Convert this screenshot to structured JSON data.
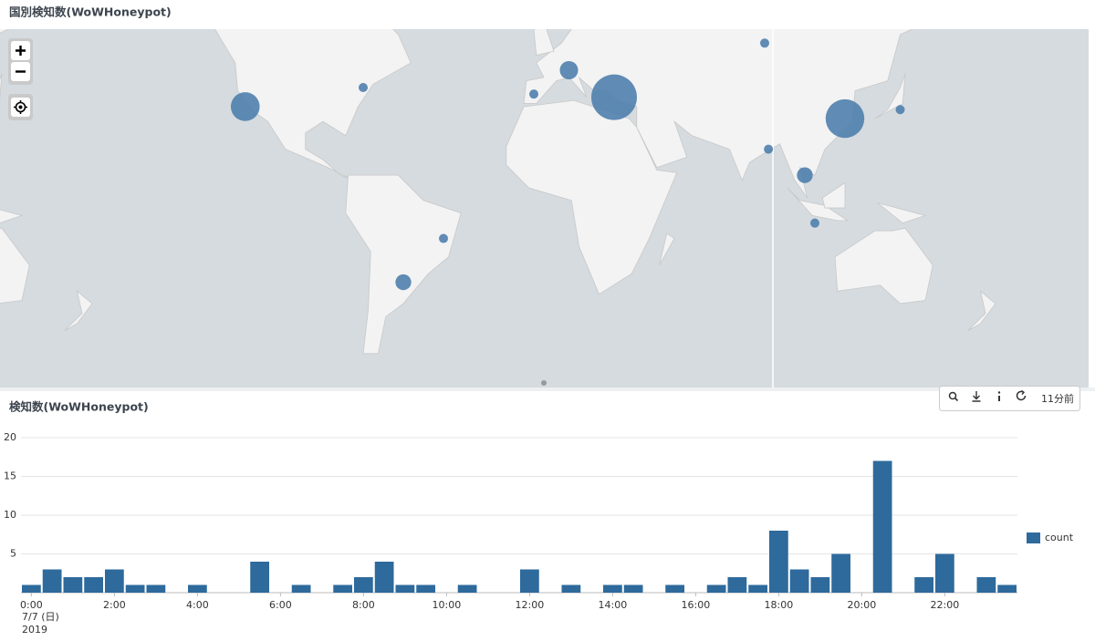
{
  "map_panel": {
    "title": "国別検知数(WoWHoneypot)",
    "color": "#4f7fad",
    "bubbles": {
      "lon": [
        -121,
        -74,
        -6,
        8,
        86,
        26,
        118,
        140,
        87.5,
        102,
        106,
        -42,
        -58
      ],
      "lat": [
        35,
        41,
        39,
        46,
        53,
        38,
        31,
        34,
        20,
        10,
        -9,
        -15,
        -31
      ],
      "count": [
        10,
        1,
        1,
        4,
        1,
        25,
        18,
        1,
        1,
        3,
        1,
        1,
        3
      ]
    }
  },
  "toolbar": {
    "time_label": "11分前"
  },
  "chart_data": {
    "type": "bar",
    "title": "検知数(WoWHoneypot)",
    "categories": [
      "0:00",
      null,
      null,
      null,
      "2:00",
      null,
      null,
      null,
      "4:00",
      null,
      null,
      null,
      "6:00",
      null,
      null,
      null,
      "8:00",
      null,
      null,
      null,
      "10:00",
      null,
      null,
      null,
      "12:00",
      null,
      null,
      null,
      "14:00",
      null,
      null,
      null,
      "16:00",
      null,
      null,
      null,
      "18:00",
      null,
      null,
      null,
      "20:00",
      null,
      null,
      null,
      "22:00",
      null,
      null,
      null
    ],
    "date_label": "7/7 (日)",
    "year_label": "2019",
    "series": [
      {
        "name": "count",
        "color": "#2e6a9c",
        "values": [
          1,
          3,
          2,
          2,
          3,
          1,
          1,
          0,
          1,
          0,
          0,
          4,
          0,
          1,
          0,
          1,
          2,
          4,
          1,
          1,
          0,
          1,
          0,
          0,
          3,
          0,
          1,
          0,
          1,
          1,
          0,
          1,
          0,
          1,
          2,
          1,
          8,
          3,
          2,
          5,
          0,
          17,
          0,
          2,
          5,
          0,
          2,
          1
        ]
      }
    ],
    "ylim": [
      0,
      20
    ],
    "yticks": [
      5,
      10,
      15,
      20
    ],
    "grid": true,
    "legend": "right"
  }
}
